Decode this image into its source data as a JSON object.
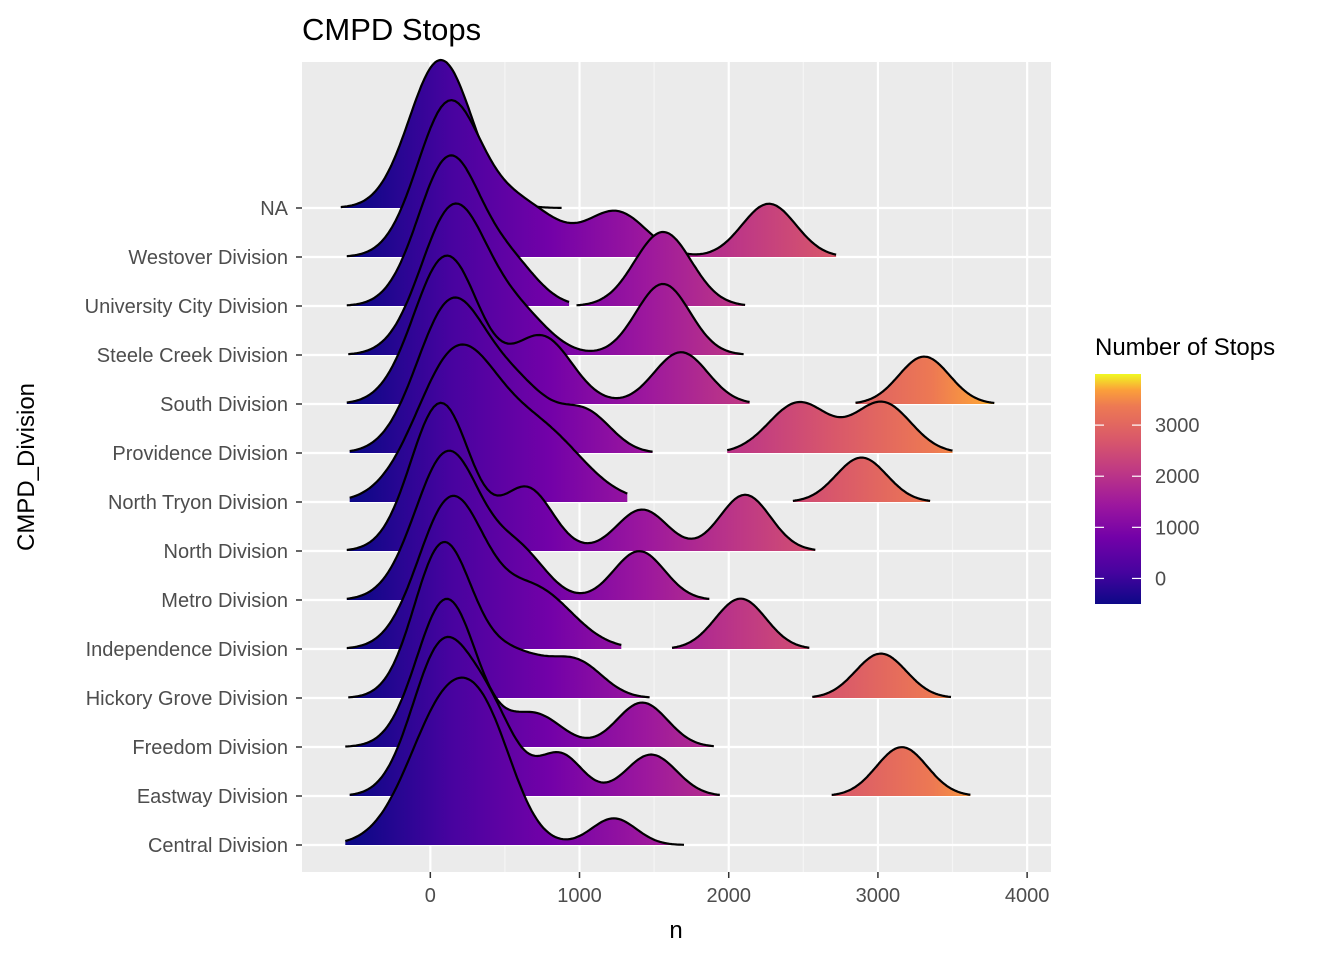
{
  "chart_data": {
    "type": "ridgeline-density",
    "title": "CMPD Stops",
    "xlabel": "n",
    "ylabel": "CMPD_Division",
    "xlim": [
      -860,
      4160
    ],
    "x_ticks": [
      0,
      1000,
      2000,
      3000,
      4000
    ],
    "x_tick_labels": [
      "0",
      "1000",
      "2000",
      "3000",
      "4000"
    ],
    "grid": true,
    "fill_palette": "plasma",
    "legend": {
      "title": "Number of Stops",
      "position": "right",
      "range": [
        -500,
        4000
      ],
      "ticks": [
        0,
        1000,
        2000,
        3000
      ],
      "tick_labels": [
        "0",
        "1000",
        "2000",
        "3000"
      ]
    },
    "categories": [
      "Central Division",
      "Eastway Division",
      "Freedom Division",
      "Hickory Grove Division",
      "Independence Division",
      "Metro Division",
      "North Division",
      "North Tryon Division",
      "Providence Division",
      "South Division",
      "Steele Creek Division",
      "University City Division",
      "Westover Division",
      "NA"
    ],
    "series": [
      {
        "name": "Central Division",
        "segments": [
          {
            "min": -570,
            "max": 1700,
            "kernels": [
              [
                130,
                260,
                1.0
              ],
              [
                420,
                180,
                0.35
              ],
              [
                1230,
                150,
                0.18
              ]
            ]
          }
        ]
      },
      {
        "name": "Eastway Division",
        "segments": [
          {
            "min": -540,
            "max": 1940,
            "kernels": [
              [
                80,
                200,
                1.0
              ],
              [
                420,
                170,
                0.45
              ],
              [
                870,
                150,
                0.28
              ],
              [
                1480,
                170,
                0.28
              ]
            ]
          },
          {
            "min": 2690,
            "max": 3620,
            "kernels": [
              [
                3160,
                170,
                0.33
              ]
            ]
          }
        ]
      },
      {
        "name": "Freedom Division",
        "segments": [
          {
            "min": -570,
            "max": 1900,
            "kernels": [
              [
                110,
                200,
                1.0
              ],
              [
                700,
                180,
                0.22
              ],
              [
                1420,
                170,
                0.3
              ]
            ]
          }
        ]
      },
      {
        "name": "Hickory Grove Division",
        "segments": [
          {
            "min": -550,
            "max": 1470,
            "kernels": [
              [
                80,
                190,
                1.0
              ],
              [
                550,
                250,
                0.3
              ],
              [
                1000,
                170,
                0.2
              ]
            ]
          },
          {
            "min": 2560,
            "max": 3490,
            "kernels": [
              [
                3020,
                170,
                0.3
              ]
            ]
          }
        ]
      },
      {
        "name": "Independence Division",
        "segments": [
          {
            "min": -560,
            "max": 1280,
            "kernels": [
              [
                140,
                220,
                1.0
              ],
              [
                700,
                250,
                0.4
              ]
            ]
          },
          {
            "min": 1620,
            "max": 2540,
            "kernels": [
              [
                2080,
                170,
                0.34
              ]
            ]
          }
        ]
      },
      {
        "name": "Metro Division",
        "segments": [
          {
            "min": -560,
            "max": 1870,
            "kernels": [
              [
                120,
                220,
                1.0
              ],
              [
                600,
                180,
                0.3
              ],
              [
                1400,
                170,
                0.33
              ]
            ]
          }
        ]
      },
      {
        "name": "North Division",
        "segments": [
          {
            "min": -560,
            "max": 2580,
            "kernels": [
              [
                70,
                200,
                1.0
              ],
              [
                650,
                170,
                0.42
              ],
              [
                1420,
                170,
                0.28
              ],
              [
                2110,
                170,
                0.38
              ]
            ]
          }
        ]
      },
      {
        "name": "North Tryon Division",
        "segments": [
          {
            "min": -540,
            "max": 1320,
            "kernels": [
              [
                180,
                270,
                1.0
              ],
              [
                750,
                280,
                0.45
              ]
            ]
          },
          {
            "min": 2430,
            "max": 3350,
            "kernels": [
              [
                2890,
                170,
                0.3
              ]
            ]
          }
        ]
      },
      {
        "name": "Providence Division",
        "segments": [
          {
            "min": -540,
            "max": 1490,
            "kernels": [
              [
                140,
                230,
                1.0
              ],
              [
                600,
                220,
                0.4
              ],
              [
                1050,
                170,
                0.25
              ]
            ]
          },
          {
            "min": 1990,
            "max": 3500,
            "kernels": [
              [
                2470,
                200,
                0.34
              ],
              [
                3030,
                190,
                0.34
              ]
            ]
          }
        ]
      },
      {
        "name": "South Division",
        "segments": [
          {
            "min": -560,
            "max": 2140,
            "kernels": [
              [
                110,
                220,
                1.0
              ],
              [
                750,
                200,
                0.45
              ],
              [
                1680,
                180,
                0.35
              ]
            ]
          },
          {
            "min": 2850,
            "max": 3780,
            "kernels": [
              [
                3310,
                170,
                0.32
              ]
            ]
          }
        ]
      },
      {
        "name": "Steele Creek Division",
        "segments": [
          {
            "min": -550,
            "max": 2100,
            "kernels": [
              [
                160,
                220,
                1.0
              ],
              [
                600,
                200,
                0.25
              ],
              [
                1560,
                180,
                0.48
              ]
            ]
          }
        ]
      },
      {
        "name": "University City Division",
        "segments": [
          {
            "min": -560,
            "max": 930,
            "kernels": [
              [
                130,
                210,
                1.0
              ],
              [
                550,
                180,
                0.25
              ]
            ]
          },
          {
            "min": 980,
            "max": 2110,
            "kernels": [
              [
                1560,
                190,
                0.5
              ]
            ]
          }
        ]
      },
      {
        "name": "Westover Division",
        "segments": [
          {
            "min": -560,
            "max": 2720,
            "kernels": [
              [
                120,
                210,
                1.0
              ],
              [
                600,
                250,
                0.35
              ],
              [
                1250,
                200,
                0.3
              ],
              [
                2270,
                180,
                0.36
              ]
            ]
          }
        ]
      },
      {
        "name": "NA",
        "segments": [
          {
            "min": -600,
            "max": 880,
            "kernels": [
              [
                70,
                210,
                1.0
              ]
            ]
          }
        ]
      }
    ]
  }
}
